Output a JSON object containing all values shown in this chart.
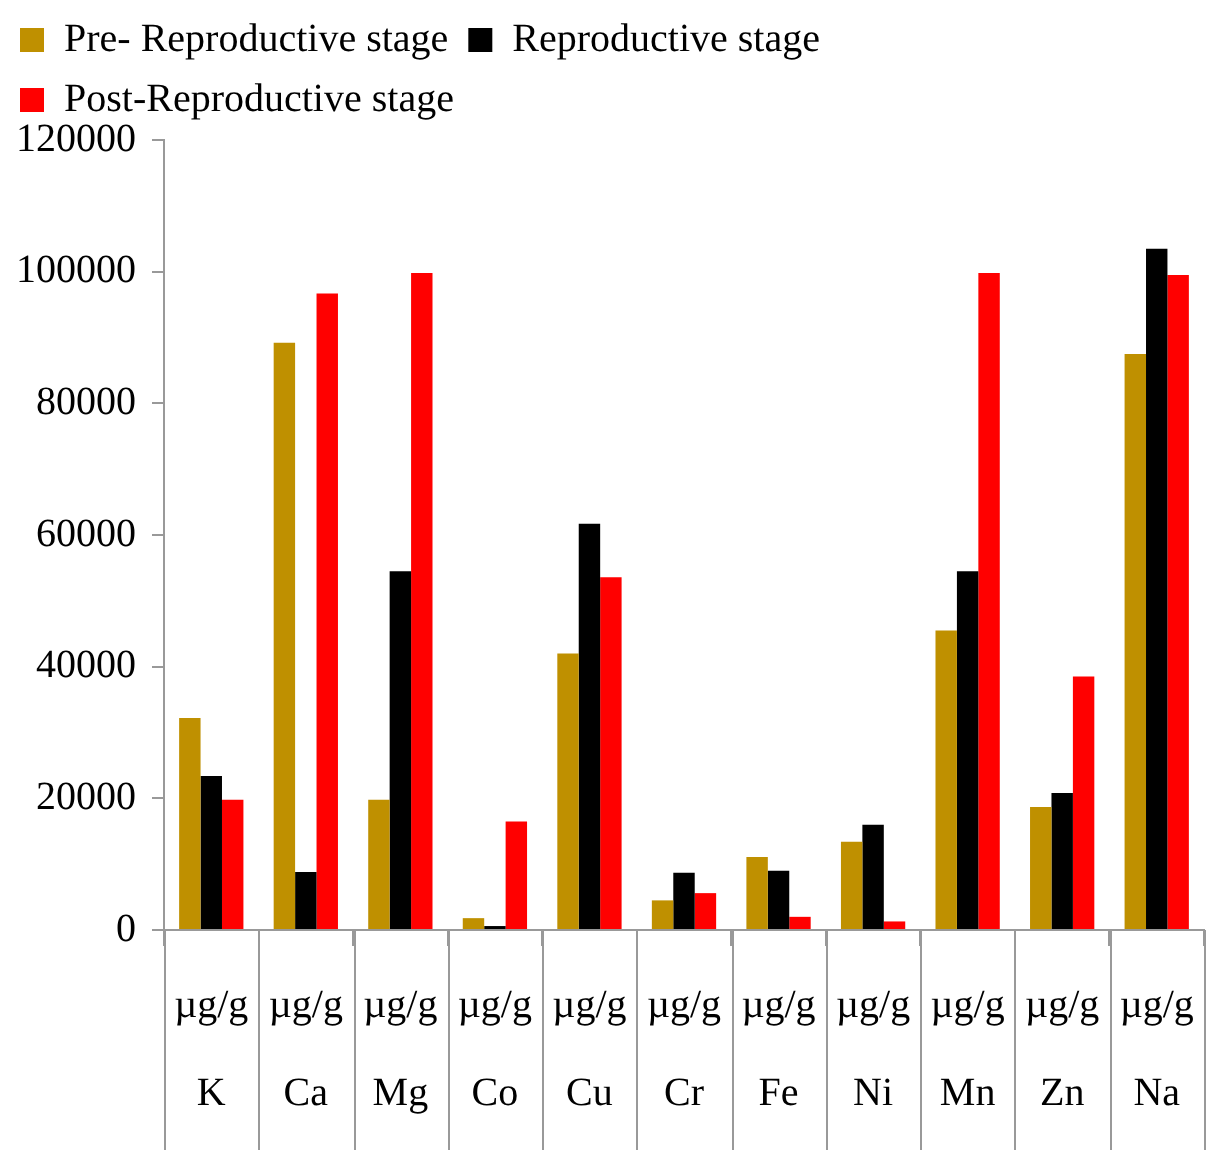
{
  "chart_data": {
    "type": "bar",
    "categories": [
      "µg/g\nK",
      "µg/g\nCa",
      "µg/g\nMg",
      "µg/g\nCo",
      "µg/g\nCu",
      "µg/g\nCr",
      "µg/g\nFe",
      "µg/g\nNi",
      "µg/g\nMn",
      "µg/g\nZn",
      "µg/g\nNa"
    ],
    "series": [
      {
        "name": "Pre- Reproductive stage",
        "color": "#bf9000",
        "values": [
          32200,
          89200,
          19800,
          1800,
          42000,
          4500,
          11100,
          13400,
          45500,
          18700,
          87500
        ]
      },
      {
        "name": "Reproductive stage",
        "color": "#000000",
        "values": [
          23400,
          8800,
          54500,
          600,
          61700,
          8700,
          9000,
          16000,
          54500,
          20800,
          103500
        ]
      },
      {
        "name": "Post-Reproductive stage",
        "color": "#ff0000",
        "values": [
          19800,
          96700,
          99800,
          16500,
          53600,
          5600,
          2000,
          1300,
          99800,
          38500,
          99500
        ]
      }
    ],
    "ylim": [
      0,
      120000
    ],
    "yticks": [
      0,
      20000,
      40000,
      60000,
      80000,
      100000,
      120000
    ],
    "grid": false,
    "legend": "top"
  }
}
